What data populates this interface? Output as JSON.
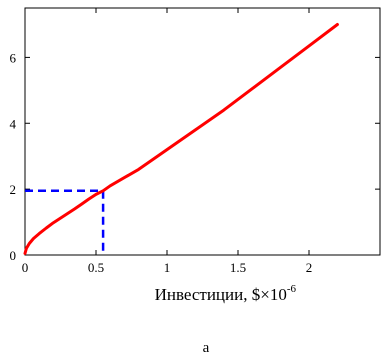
{
  "chart_data": {
    "type": "line",
    "title": "",
    "xlabel": "Инвестиции, $",
    "xlabel_multiplier": "×10",
    "xlabel_exponent": "-6",
    "ylabel": "",
    "xlim": [
      0,
      2.5
    ],
    "ylim": [
      0,
      7.5
    ],
    "xticks": [
      0,
      0.5,
      1,
      1.5,
      2
    ],
    "xtick_labels": [
      "0",
      "0.5",
      "1",
      "1.5",
      "2"
    ],
    "yticks": [
      0,
      2,
      4,
      6
    ],
    "ytick_labels": [
      "0",
      "2",
      "4",
      "6"
    ],
    "grid": false,
    "legend": "none",
    "caption": "а",
    "series": [
      {
        "color": "#ff0000",
        "x": [
          0,
          0.01,
          0.03,
          0.06,
          0.1,
          0.15,
          0.2,
          0.25,
          0.3,
          0.35,
          0.4,
          0.45,
          0.5,
          0.55,
          0.6,
          0.7,
          0.8,
          0.9,
          1.0,
          1.2,
          1.4,
          1.6,
          1.8,
          2.0,
          2.2
        ],
        "y": [
          0.05,
          0.2,
          0.35,
          0.5,
          0.65,
          0.82,
          0.98,
          1.12,
          1.26,
          1.4,
          1.55,
          1.7,
          1.84,
          1.95,
          2.1,
          2.35,
          2.6,
          2.9,
          3.2,
          3.8,
          4.4,
          5.05,
          5.7,
          6.35,
          7.0
        ]
      }
    ],
    "reference_lines": [
      {
        "color": "#0000ff",
        "style": "dashed",
        "x": 0.55,
        "y": 1.95
      }
    ]
  }
}
